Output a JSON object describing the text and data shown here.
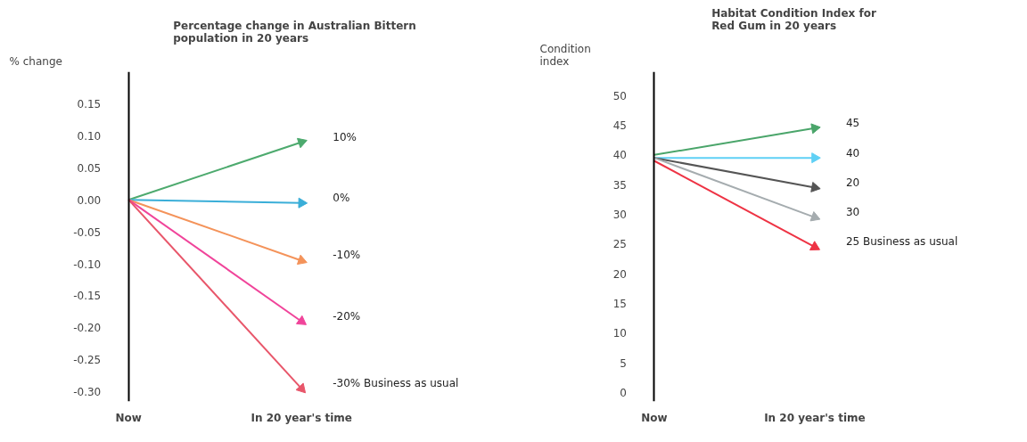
{
  "chart_data": [
    {
      "type": "line",
      "title": "Percentage change in Australian Bittern population in 20 years",
      "ylabel": "% change",
      "categories": [
        "Now",
        "In 20 year's time"
      ],
      "ylim": [
        -0.315,
        0.2
      ],
      "yticks": [
        {
          "value": -0.3,
          "label": "-0.30"
        },
        {
          "value": -0.25,
          "label": "-0.25"
        },
        {
          "value": -0.2,
          "label": "-0.20"
        },
        {
          "value": -0.15,
          "label": "-0.15"
        },
        {
          "value": -0.1,
          "label": "-0.10"
        },
        {
          "value": -0.05,
          "label": "-0.05"
        },
        {
          "value": 0,
          "label": "0.00"
        },
        {
          "value": 0.05,
          "label": "0.05"
        },
        {
          "value": 0.1,
          "label": "0.10"
        },
        {
          "value": 0.15,
          "label": "0.15"
        }
      ],
      "series": [
        {
          "name": "10%",
          "color": "#4daa6e",
          "values": [
            0.0,
            0.09
          ]
        },
        {
          "name": "0%",
          "color": "#3aaed8",
          "values": [
            0.0,
            -0.005
          ]
        },
        {
          "name": "-10%",
          "color": "#f4935a",
          "values": [
            0.0,
            -0.095
          ]
        },
        {
          "name": "-20%",
          "color": "#f0449a",
          "values": [
            0.0,
            -0.19
          ]
        },
        {
          "name": "-30% Business as usual",
          "color": "#e8566a",
          "values": [
            0.0,
            -0.295
          ]
        }
      ]
    },
    {
      "type": "line",
      "title": "Habitat Condition Index for Red Gum in 20 years",
      "ylabel": "Condition index",
      "categories": [
        "Now",
        "In 20 year's time"
      ],
      "ylim": [
        -1.5,
        54
      ],
      "yticks": [
        0,
        5,
        10,
        15,
        20,
        25,
        30,
        35,
        40,
        45,
        50
      ],
      "series": [
        {
          "name": "45",
          "color": "#4aa56a",
          "values": [
            40,
            44.5
          ]
        },
        {
          "name": "40",
          "color": "#5fd0f5",
          "values": [
            39.5,
            39.5
          ]
        },
        {
          "name": "20",
          "color": "#555555",
          "values": [
            39.5,
            34.5
          ]
        },
        {
          "name": "30",
          "color": "#a5acaf",
          "values": [
            39.5,
            29.5
          ]
        },
        {
          "name": "25 Business as usual",
          "color": "#ee3344",
          "values": [
            39,
            24.5
          ]
        }
      ]
    }
  ]
}
